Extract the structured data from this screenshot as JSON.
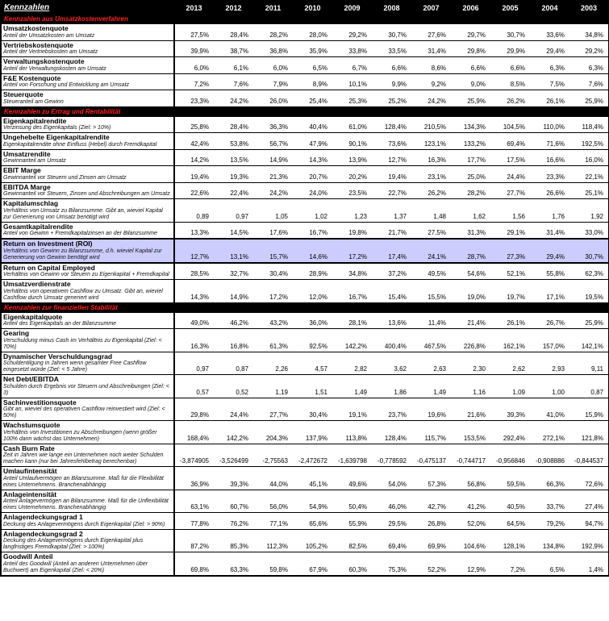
{
  "table": {
    "title": "Kennzahlen"
  },
  "colors": {
    "header_bg": "#000000",
    "header_text": "#ffffff",
    "section_text": "#ff2222",
    "highlight_bg": "#ccccff"
  },
  "years": [
    "2013",
    "2012",
    "2011",
    "2010",
    "2009",
    "2008",
    "2007",
    "2006",
    "2005",
    "2004",
    "2003"
  ],
  "sections": [
    {
      "label": "Kennzahlen aus Umsatzkostenverfahren",
      "metrics": [
        {
          "name": "Umsatzkostenquote",
          "desc": "Anteil der Umsatzkosten am Umsatz",
          "values": [
            "27,5%",
            "28,4%",
            "28,2%",
            "28,0%",
            "29,2%",
            "30,7%",
            "27,6%",
            "29,7%",
            "30,7%",
            "33,6%",
            "34,8%"
          ]
        },
        {
          "name": "Vertriebskostenquote",
          "desc": "Anteil der Vertriebskosten am Umsatz",
          "values": [
            "39,9%",
            "38,7%",
            "36,8%",
            "35,9%",
            "33,8%",
            "33,5%",
            "31,4%",
            "29,8%",
            "29,9%",
            "29,4%",
            "29,2%"
          ]
        },
        {
          "name": "Verwaltungskostenquote",
          "desc": "Anteil der Verwaltungskosten am Umsatz",
          "values": [
            "6,0%",
            "6,1%",
            "6,0%",
            "6,5%",
            "6,7%",
            "6,6%",
            "8,6%",
            "6,6%",
            "6,6%",
            "6,3%",
            "6,3%"
          ]
        },
        {
          "name": "F&E Kostenquote",
          "desc": "Anteil von Forschung und Entwicklung am Umsatz",
          "values": [
            "7,2%",
            "7,6%",
            "7,9%",
            "8,9%",
            "10,1%",
            "9,9%",
            "9,2%",
            "9,0%",
            "8,5%",
            "7,5%",
            "7,6%"
          ]
        },
        {
          "name": "Steuerquote",
          "desc": "Steueranteil am Gewinn",
          "values": [
            "23,3%",
            "24,2%",
            "26,0%",
            "25,4%",
            "25,3%",
            "25,2%",
            "24,2%",
            "25,9%",
            "26,2%",
            "26,1%",
            "25,9%"
          ]
        }
      ]
    },
    {
      "label": "Kennzahlen zu Ertrag und Rentabilität",
      "metrics": [
        {
          "name": "Eigenkapitalrendite",
          "desc": "Verzinsung des Eigenkapitals (Ziel: > 10%)",
          "values": [
            "25,8%",
            "28,4%",
            "36,3%",
            "40,4%",
            "61,0%",
            "128,4%",
            "210,5%",
            "134,3%",
            "104,5%",
            "110,0%",
            "118,4%"
          ]
        },
        {
          "name": "Ungehebelte Eigenkapitalrendite",
          "desc": "Eigenkapitalrendite ohne Einfluss (Hebel) durch Fremdkapital",
          "values": [
            "42,4%",
            "53,8%",
            "56,7%",
            "47,9%",
            "90,1%",
            "73,6%",
            "123,1%",
            "133,2%",
            "69,4%",
            "71,6%",
            "192,5%"
          ]
        },
        {
          "name": "Umsatzrendite",
          "desc": "Gewinnanteil am Umsatz",
          "values": [
            "14,2%",
            "13,5%",
            "14,9%",
            "14,3%",
            "13,9%",
            "12,7%",
            "16,3%",
            "17,7%",
            "17,5%",
            "16,6%",
            "16,0%"
          ]
        },
        {
          "name": "EBIT Marge",
          "desc": "Gewinnanteil vor Steuern und Zinsen am Umsatz",
          "values": [
            "19,4%",
            "19,3%",
            "21,3%",
            "20,7%",
            "20,2%",
            "19,4%",
            "23,1%",
            "25,0%",
            "24,4%",
            "23,3%",
            "22,1%"
          ]
        },
        {
          "name": "EBITDA Marge",
          "desc": "Gewinnanteil vor Steuern, Zinsen und Abschreibungen am Umsatz",
          "values": [
            "22,6%",
            "22,4%",
            "24,2%",
            "24,0%",
            "23,5%",
            "22,7%",
            "26,2%",
            "28,2%",
            "27,7%",
            "26,6%",
            "25,1%"
          ]
        },
        {
          "name": "Kapitalumschlag",
          "desc": "Verhältnis von Umsatz zu Bilanzsumme. Gibt an, wieviel Kapital zur Generierung von Umsatz benötigt wird",
          "values": [
            "0,89",
            "0,97",
            "1,05",
            "1,02",
            "1,23",
            "1,37",
            "1,48",
            "1,62",
            "1,56",
            "1,76",
            "1,92"
          ]
        },
        {
          "name": "Gesamtkapitalrendite",
          "desc": "Anteil von Gewinn + Fremdkapitalzinsen an der Bilanzsumme",
          "values": [
            "13,3%",
            "14,5%",
            "17,6%",
            "16,7%",
            "19,8%",
            "21,7%",
            "27,5%",
            "31,3%",
            "29,1%",
            "31,4%",
            "33,0%"
          ]
        },
        {
          "name": "Return on Investment (ROI)",
          "desc": "Verhältnis von Gewinn zu Bilanzsumme, d.h. wieviel Kapital zur Generierung von Gewinn benötigt wird",
          "highlight": true,
          "values": [
            "12,7%",
            "13,1%",
            "15,7%",
            "14,6%",
            "17,2%",
            "17,4%",
            "24,1%",
            "28,7%",
            "27,3%",
            "29,4%",
            "30,7%"
          ]
        },
        {
          "name": "Return on Capital Employed",
          "desc": "Verhältnis von Gewinn vor Steuern zu Eigenkapital + Fremdkapital",
          "values": [
            "28,5%",
            "32,7%",
            "30,4%",
            "28,9%",
            "34,8%",
            "37,2%",
            "49,5%",
            "54,6%",
            "52,1%",
            "55,8%",
            "62,3%"
          ]
        },
        {
          "name": "Umsatzverdienstrate",
          "desc": "Verhältnis von operativem Cashflow zu Umsatz. Gibt an, wieviel Cashflow durch Umsatz generiert wird",
          "values": [
            "14,3%",
            "14,9%",
            "17,2%",
            "12,0%",
            "16,7%",
            "15,4%",
            "15,5%",
            "19,0%",
            "19,7%",
            "17,1%",
            "19,5%"
          ]
        }
      ]
    },
    {
      "label": "Kennzahlen zur finanziellen Stabilität",
      "metrics": [
        {
          "name": "Eigenkapitalquote",
          "desc": "Anteil des Eigenkapitals an der Bilanzsumme",
          "values": [
            "49,0%",
            "46,2%",
            "43,2%",
            "36,0%",
            "28,1%",
            "13,6%",
            "11,4%",
            "21,4%",
            "26,1%",
            "26,7%",
            "25,9%"
          ]
        },
        {
          "name": "Gearing",
          "desc": "Verschuldung minus Cash im Verhältnis zu Eigenkapital (Ziel: < 70%)",
          "values": [
            "16,3%",
            "16,8%",
            "61,3%",
            "92,5%",
            "142,2%",
            "400,4%",
            "467,5%",
            "226,8%",
            "162,1%",
            "157,0%",
            "142,1%"
          ]
        },
        {
          "name": "Dynamischer Verschuldungsgrad",
          "desc": "Schuldentilgung in Jahren wenn gesamter Free Cashflow eingesetzt würde (Ziel: < 5 Jahre)",
          "values": [
            "0,97",
            "0,87",
            "2,26",
            "4,57",
            "2,82",
            "3,62",
            "2,63",
            "2,30",
            "2,62",
            "2,93",
            "9,11"
          ]
        },
        {
          "name": "Net Debt/EBITDA",
          "desc": "Schulden durch Ergebnis vor Steuern und Abschreibungen (Ziel: < 3)",
          "values": [
            "0,57",
            "0,52",
            "1,19",
            "1,51",
            "1,49",
            "1,86",
            "1,49",
            "1,16",
            "1,09",
            "1,00",
            "0,87"
          ]
        },
        {
          "name": "Sachinvestitionsquote",
          "desc": "Gibt an, wieviel des operativen Cashflow reinvestiert wird (Ziel: < 50%)",
          "values": [
            "29,8%",
            "24,4%",
            "27,7%",
            "30,4%",
            "19,1%",
            "23,7%",
            "19,6%",
            "21,6%",
            "39,3%",
            "41,0%",
            "15,9%"
          ]
        },
        {
          "name": "Wachstumsquote",
          "desc": "Verhältnis von Investitionen zu Abschreibungen (wenn größer 100% dann wächst das Unternehmen)",
          "values": [
            "168,4%",
            "142,2%",
            "204,3%",
            "137,9%",
            "113,8%",
            "128,4%",
            "115,7%",
            "153,5%",
            "292,4%",
            "272,1%",
            "121,8%"
          ]
        },
        {
          "name": "Cash Burn Rate",
          "desc": "Zeit in Jahren wie lange ein Unternehmen noch weiter Schulden machen kann (nur bei Jahresfehlbetrag berechenbar)",
          "values": [
            "-3,874905",
            "-3,526499",
            "-2,75563",
            "-2,472672",
            "-1,639798",
            "-0,778592",
            "-0,475137",
            "-0,744717",
            "-0,956846",
            "-0,908886",
            "-0,844537"
          ]
        },
        {
          "name": "Umlaufintensität",
          "desc": "Anteil Umlaufvermögen an Bilanzsumme. Maß für die Flexibilität eines Unternehmens. Branchenabhängig",
          "values": [
            "36,9%",
            "39,3%",
            "44,0%",
            "45,1%",
            "49,6%",
            "54,0%",
            "57,3%",
            "56,8%",
            "59,5%",
            "66,3%",
            "72,6%"
          ]
        },
        {
          "name": "Anlageintensität",
          "desc": "Anteil Anlagevermögen an Bilanzsumme. Maß für die Unflexibilität eines Unternehmens. Branchenabhängig",
          "values": [
            "63,1%",
            "60,7%",
            "56,0%",
            "54,9%",
            "50,4%",
            "46,0%",
            "42,7%",
            "41,2%",
            "40,5%",
            "33,7%",
            "27,4%"
          ]
        },
        {
          "name": "Anlagendeckungsgrad 1",
          "desc": "Deckung des Anlagevermögens durch Eigenkapital (Ziel: > 90%)",
          "values": [
            "77,8%",
            "76,2%",
            "77,1%",
            "65,6%",
            "55,9%",
            "29,5%",
            "26,8%",
            "52,0%",
            "64,5%",
            "79,2%",
            "94,7%"
          ]
        },
        {
          "name": "Anlagendeckungsgrad 2",
          "desc": "Deckung des Anlagevermögens durch Eigenkapital plus langfristiges Fremdkapital (Ziel: > 100%)",
          "values": [
            "87,2%",
            "85,3%",
            "112,3%",
            "105,2%",
            "82,5%",
            "69,4%",
            "69,9%",
            "104,6%",
            "128,1%",
            "134,8%",
            "192,9%"
          ]
        },
        {
          "name": "Goodwill Anteil",
          "desc": "Anteil des Goodwill (Anteil an anderen Unternehmen über Buchwert) am Eigenkapital (Ziel: < 20%)",
          "values": [
            "69,8%",
            "63,3%",
            "59,8%",
            "67,9%",
            "60,3%",
            "75,3%",
            "52,2%",
            "12,9%",
            "7,2%",
            "6,5%",
            "1,4%"
          ]
        }
      ]
    }
  ]
}
